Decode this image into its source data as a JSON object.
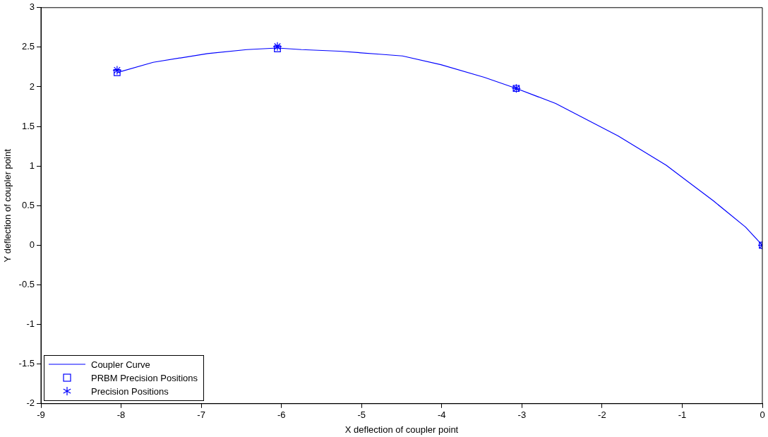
{
  "chart_data": {
    "type": "line",
    "xlabel": "X deflection of coupler point",
    "ylabel": "Y deflection of coupler point",
    "xlim": [
      -9,
      0
    ],
    "xticks": [
      -9,
      -8,
      -7,
      -6,
      -5,
      -4,
      -3,
      -2,
      -1,
      0
    ],
    "ylim": [
      -2,
      3
    ],
    "yticks": [
      -2,
      -1.5,
      -1,
      -0.5,
      0,
      0.5,
      1,
      1.5,
      2,
      2.5,
      3
    ],
    "grid": false,
    "legend": "bottom left",
    "series": [
      {
        "name": "Coupler Curve",
        "color": "#0000ff",
        "marker": "none",
        "x": [
          -8.05,
          -7.6,
          -6.92,
          -6.43,
          -6.05,
          -5.75,
          -5.28,
          -4.75,
          -4.49,
          -4.01,
          -3.47,
          -3.07,
          -2.58,
          -1.8,
          -1.2,
          -0.61,
          -0.21,
          0
        ],
        "values": [
          2.18,
          2.31,
          2.42,
          2.47,
          2.49,
          2.47,
          2.45,
          2.41,
          2.39,
          2.28,
          2.12,
          1.98,
          1.79,
          1.38,
          1.01,
          0.56,
          0.23,
          0
        ]
      },
      {
        "name": "PRBM Precision Positions",
        "type": "scatter",
        "color": "#0000ff",
        "marker": "square",
        "x": [
          -8.05,
          -6.05,
          -3.07,
          0
        ],
        "values": [
          2.18,
          2.48,
          1.98,
          0
        ]
      },
      {
        "name": "Precision Positions",
        "type": "scatter",
        "color": "#0000ff",
        "marker": "cross",
        "x": [
          -8.05,
          -6.05,
          -3.07,
          0
        ],
        "values": [
          2.21,
          2.51,
          1.98,
          0
        ]
      }
    ]
  }
}
